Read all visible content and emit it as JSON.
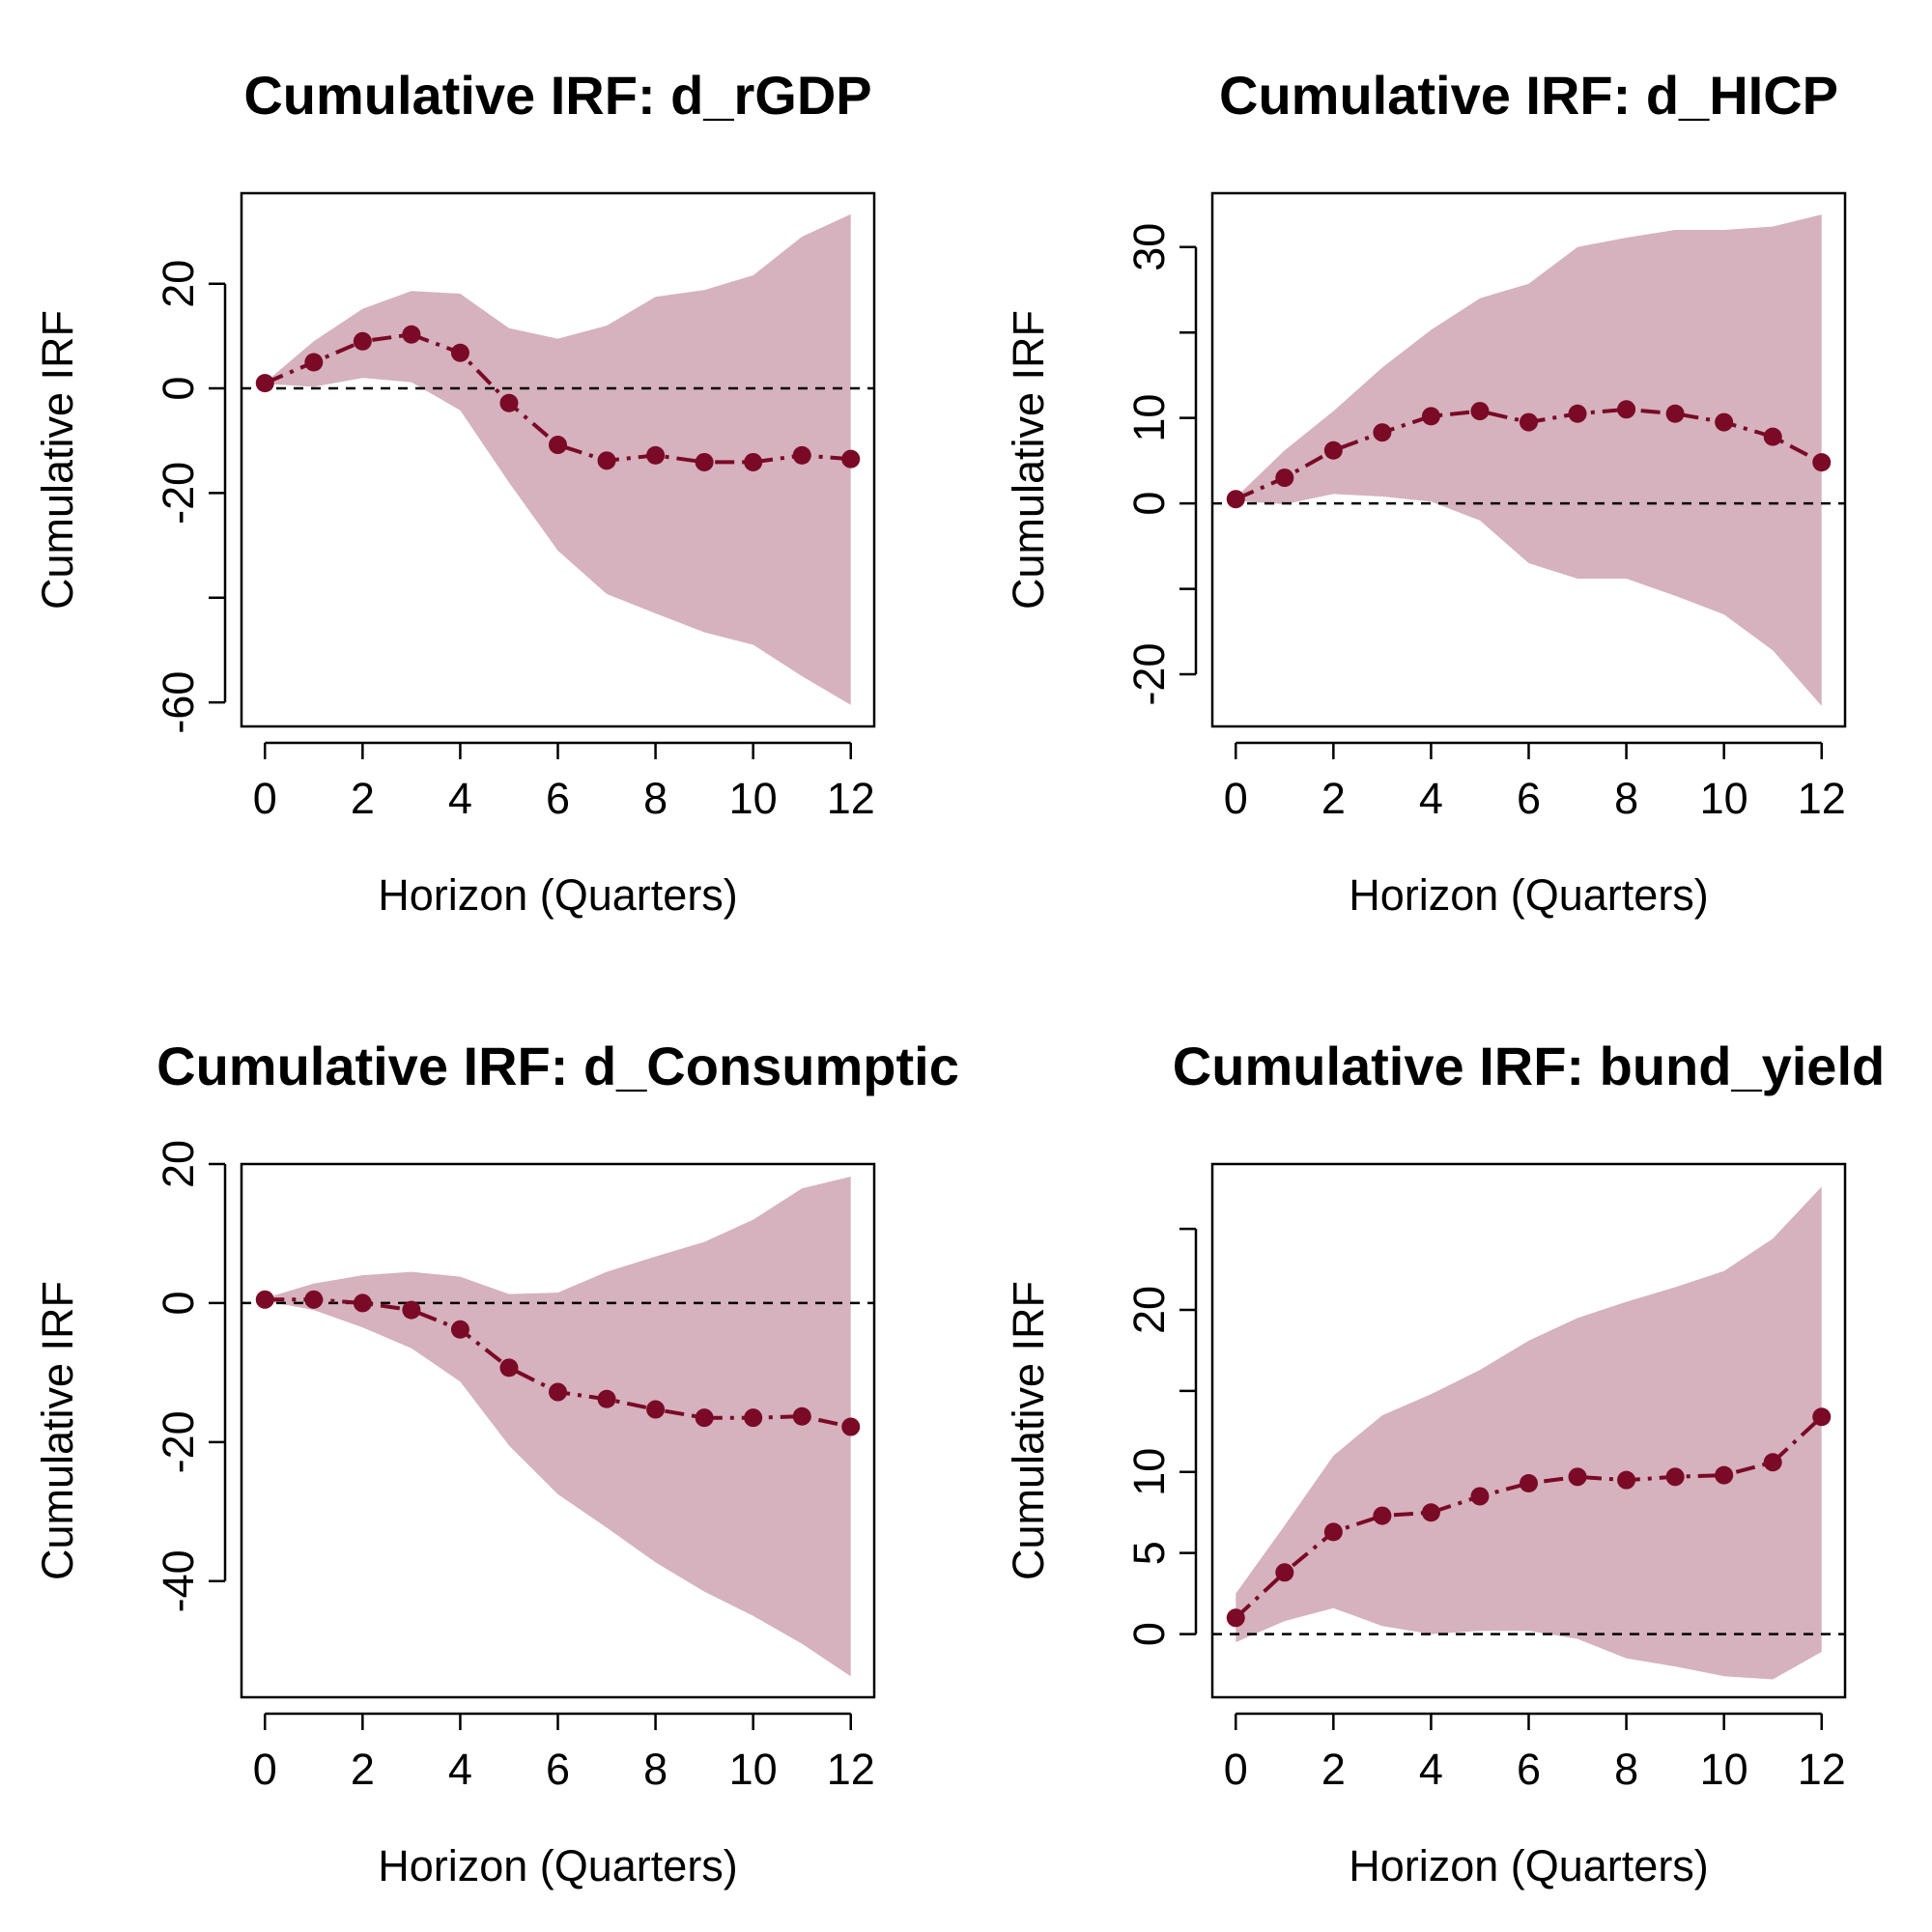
{
  "colors": {
    "band": "#d5b2bd",
    "line": "#7a0a26",
    "zero": "#000000",
    "axis": "#000000"
  },
  "chart_data": [
    {
      "type": "line",
      "title": "Cumulative IRF: d_rGDP",
      "xlabel": "Horizon (Quarters)",
      "ylabel": "Cumulative IRF",
      "x": [
        0,
        1,
        2,
        3,
        4,
        5,
        6,
        7,
        8,
        9,
        10,
        11,
        12
      ],
      "xticks": [
        0,
        2,
        4,
        6,
        8,
        10,
        12
      ],
      "xlim": [
        -0.48,
        12.48
      ],
      "ylim": [
        -64.6,
        37.3
      ],
      "yticks": [
        -60,
        -40,
        -20,
        0,
        20
      ],
      "ytick_labels": [
        "-60",
        "",
        "-20",
        "0",
        "20"
      ],
      "zero_line": true,
      "series": [
        {
          "role": "estimate",
          "values": [
            1,
            5,
            9,
            10.3,
            6.8,
            -2.8,
            -10.8,
            -13.8,
            -12.8,
            -14.1,
            -14.1,
            -12.8,
            -13.5
          ]
        },
        {
          "role": "lower",
          "values": [
            0.9,
            0.3,
            2,
            1.2,
            -4.2,
            -18,
            -31,
            -39.3,
            -43,
            -46.6,
            -49,
            -55,
            -60.5
          ]
        },
        {
          "role": "upper",
          "values": [
            1.1,
            9,
            15.2,
            18.6,
            18.1,
            11.5,
            9.5,
            12,
            17.5,
            18.8,
            21.6,
            29,
            33.3
          ]
        }
      ]
    },
    {
      "type": "line",
      "title": "Cumulative IRF: d_HICP",
      "xlabel": "Horizon (Quarters)",
      "ylabel": "Cumulative IRF",
      "x": [
        0,
        1,
        2,
        3,
        4,
        5,
        6,
        7,
        8,
        9,
        10,
        11,
        12
      ],
      "xticks": [
        0,
        2,
        4,
        6,
        8,
        10,
        12
      ],
      "xlim": [
        -0.48,
        12.48
      ],
      "ylim": [
        -26.1,
        36.3
      ],
      "yticks": [
        -20,
        -10,
        0,
        10,
        20,
        30
      ],
      "ytick_labels": [
        "-20",
        "",
        "0",
        "10",
        "",
        "30"
      ],
      "zero_line": true,
      "series": [
        {
          "role": "estimate",
          "values": [
            0.5,
            3,
            6.2,
            8.3,
            10.2,
            10.8,
            9.5,
            10.5,
            11,
            10.5,
            9.5,
            7.8,
            4.8
          ]
        },
        {
          "role": "lower",
          "values": [
            0.3,
            -0.1,
            1.1,
            0.8,
            0.2,
            -2,
            -7,
            -8.8,
            -8.8,
            -10.8,
            -13,
            -17.2,
            -23.7
          ]
        },
        {
          "role": "upper",
          "values": [
            0.7,
            6.2,
            10.8,
            15.9,
            20.3,
            24,
            25.7,
            30,
            31.1,
            32,
            32,
            32.4,
            33.8
          ]
        }
      ]
    },
    {
      "type": "line",
      "title": "Cumulative IRF: d_Consumptic",
      "xlabel": "Horizon (Quarters)",
      "ylabel": "Cumulative IRF",
      "x": [
        0,
        1,
        2,
        3,
        4,
        5,
        6,
        7,
        8,
        9,
        10,
        11,
        12
      ],
      "xticks": [
        0,
        2,
        4,
        6,
        8,
        10,
        12
      ],
      "xlim": [
        -0.48,
        12.48
      ],
      "ylim": [
        -56.7,
        20.0
      ],
      "yticks": [
        -40,
        -20,
        0,
        20
      ],
      "ytick_labels": [
        "-40",
        "-20",
        "0",
        "20"
      ],
      "zero_line": true,
      "series": [
        {
          "role": "estimate",
          "values": [
            0.5,
            0.5,
            0,
            -1,
            -3.8,
            -9.3,
            -12.8,
            -13.8,
            -15.3,
            -16.5,
            -16.5,
            -16.3,
            -17.8
          ]
        },
        {
          "role": "lower",
          "values": [
            0.3,
            -1,
            -3.5,
            -6.5,
            -11.3,
            -20.5,
            -27.5,
            -32.3,
            -37.3,
            -41.5,
            -45,
            -49,
            -53.7
          ]
        },
        {
          "role": "upper",
          "values": [
            0.7,
            2.8,
            4,
            4.5,
            3.8,
            1.3,
            1.5,
            4.5,
            6.7,
            8.8,
            12,
            16.5,
            18.2
          ]
        }
      ]
    },
    {
      "type": "line",
      "title": "Cumulative IRF: bund_yield",
      "xlabel": "Horizon (Quarters)",
      "ylabel": "Cumulative IRF",
      "x": [
        0,
        1,
        2,
        3,
        4,
        5,
        6,
        7,
        8,
        9,
        10,
        11,
        12
      ],
      "xticks": [
        0,
        2,
        4,
        6,
        8,
        10,
        12
      ],
      "xlim": [
        -0.48,
        12.48
      ],
      "ylim": [
        -3.9,
        29.0
      ],
      "yticks": [
        0,
        5,
        10,
        15,
        20,
        25
      ],
      "ytick_labels": [
        "0",
        "5",
        "10",
        "",
        "20",
        ""
      ],
      "zero_line": true,
      "series": [
        {
          "role": "estimate",
          "values": [
            1,
            3.8,
            6.3,
            7.3,
            7.5,
            8.5,
            9.3,
            9.7,
            9.5,
            9.7,
            9.8,
            10.6,
            13.4
          ]
        },
        {
          "role": "lower",
          "values": [
            -0.5,
            0.8,
            1.6,
            0.5,
            0,
            0.2,
            0.2,
            -0.3,
            -1.5,
            -2,
            -2.6,
            -2.8,
            -1.1
          ]
        },
        {
          "role": "upper",
          "values": [
            2.5,
            6.7,
            11,
            13.5,
            14.8,
            16.3,
            18.1,
            19.5,
            20.5,
            21.4,
            22.4,
            24.4,
            27.6
          ]
        }
      ]
    }
  ]
}
